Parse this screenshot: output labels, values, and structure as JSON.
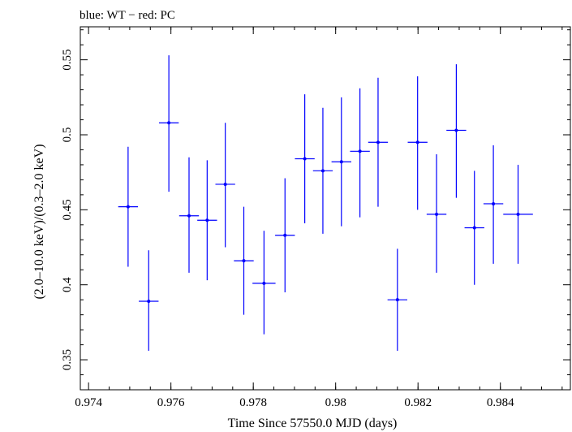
{
  "chart_data": {
    "type": "scatter",
    "title": "blue: WT − red: PC",
    "xlabel": "Time Since 57550.0 MJD (days)",
    "ylabel": "(2.0–10.0 keV)/(0.3–2.0 keV)",
    "xlim": [
      0.9738,
      0.9857
    ],
    "ylim": [
      0.33,
      0.572
    ],
    "xticks": [
      0.974,
      0.976,
      0.978,
      0.98,
      0.982,
      0.984
    ],
    "xtick_labels": [
      "0.974",
      "0.976",
      "0.978",
      "0.98",
      "0.982",
      "0.984"
    ],
    "yticks": [
      0.35,
      0.4,
      0.45,
      0.5,
      0.55
    ],
    "ytick_labels": [
      "0.35",
      "0.4",
      "0.45",
      "0.5",
      "0.55"
    ],
    "series": [
      {
        "name": "WT",
        "color": "#0000ff",
        "points": [
          {
            "x": 0.97496,
            "y": 0.452,
            "xerr": 0.00024,
            "ylo": 0.412,
            "yhi": 0.492
          },
          {
            "x": 0.97546,
            "y": 0.389,
            "xerr": 0.00024,
            "ylo": 0.356,
            "yhi": 0.423
          },
          {
            "x": 0.97595,
            "y": 0.508,
            "xerr": 0.00024,
            "ylo": 0.462,
            "yhi": 0.553
          },
          {
            "x": 0.97644,
            "y": 0.446,
            "xerr": 0.00024,
            "ylo": 0.408,
            "yhi": 0.485
          },
          {
            "x": 0.97688,
            "y": 0.443,
            "xerr": 0.00024,
            "ylo": 0.403,
            "yhi": 0.483
          },
          {
            "x": 0.97732,
            "y": 0.467,
            "xerr": 0.00024,
            "ylo": 0.425,
            "yhi": 0.508
          },
          {
            "x": 0.97777,
            "y": 0.416,
            "xerr": 0.00024,
            "ylo": 0.38,
            "yhi": 0.452
          },
          {
            "x": 0.97826,
            "y": 0.401,
            "xerr": 0.00028,
            "ylo": 0.367,
            "yhi": 0.436
          },
          {
            "x": 0.97877,
            "y": 0.433,
            "xerr": 0.00024,
            "ylo": 0.395,
            "yhi": 0.471
          },
          {
            "x": 0.97925,
            "y": 0.484,
            "xerr": 0.00024,
            "ylo": 0.441,
            "yhi": 0.527
          },
          {
            "x": 0.97969,
            "y": 0.476,
            "xerr": 0.00024,
            "ylo": 0.434,
            "yhi": 0.518
          },
          {
            "x": 0.98014,
            "y": 0.482,
            "xerr": 0.00024,
            "ylo": 0.439,
            "yhi": 0.525
          },
          {
            "x": 0.98059,
            "y": 0.489,
            "xerr": 0.00024,
            "ylo": 0.445,
            "yhi": 0.531
          },
          {
            "x": 0.98103,
            "y": 0.495,
            "xerr": 0.00024,
            "ylo": 0.452,
            "yhi": 0.538
          },
          {
            "x": 0.9815,
            "y": 0.39,
            "xerr": 0.00024,
            "ylo": 0.356,
            "yhi": 0.424
          },
          {
            "x": 0.98199,
            "y": 0.495,
            "xerr": 0.00024,
            "ylo": 0.45,
            "yhi": 0.539
          },
          {
            "x": 0.98245,
            "y": 0.447,
            "xerr": 0.00024,
            "ylo": 0.408,
            "yhi": 0.487
          },
          {
            "x": 0.98293,
            "y": 0.503,
            "xerr": 0.00024,
            "ylo": 0.458,
            "yhi": 0.547
          },
          {
            "x": 0.98337,
            "y": 0.438,
            "xerr": 0.00024,
            "ylo": 0.4,
            "yhi": 0.476
          },
          {
            "x": 0.98383,
            "y": 0.454,
            "xerr": 0.00024,
            "ylo": 0.414,
            "yhi": 0.493
          },
          {
            "x": 0.98443,
            "y": 0.447,
            "xerr": 0.00036,
            "ylo": 0.414,
            "yhi": 0.48
          }
        ]
      }
    ]
  }
}
